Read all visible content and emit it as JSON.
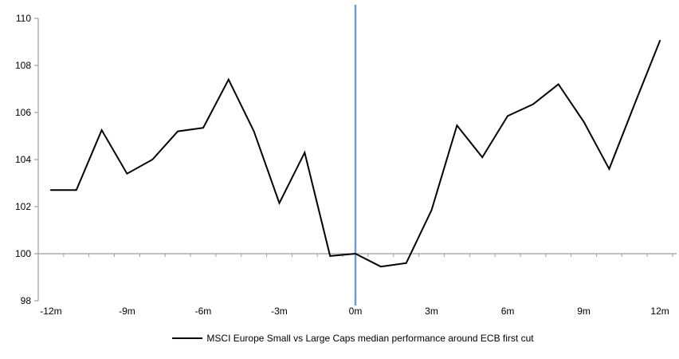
{
  "figure": {
    "background": "#ffffff"
  },
  "chart_data": {
    "type": "line",
    "title": "",
    "x": [
      -12,
      -11,
      -10,
      -9,
      -8,
      -7,
      -6,
      -5,
      -4,
      -3,
      -2,
      -1,
      0,
      1,
      2,
      3,
      4,
      5,
      6,
      7,
      8,
      9,
      10,
      11,
      12
    ],
    "series": [
      {
        "name": "MSCI Europe Small vs Large Caps median performance around ECB first cut",
        "color": "#000000",
        "values": [
          102.7,
          102.7,
          105.25,
          103.4,
          104.0,
          105.2,
          105.35,
          107.4,
          105.2,
          102.15,
          104.3,
          99.9,
          100.0,
          99.45,
          99.6,
          101.85,
          105.45,
          104.1,
          105.85,
          106.35,
          107.2,
          105.6,
          103.6,
          106.35,
          109.05
        ]
      }
    ],
    "x_tick_values": [
      -12,
      -9,
      -6,
      -3,
      0,
      3,
      6,
      9,
      12
    ],
    "x_tick_labels": [
      "-12m",
      "-9m",
      "-6m",
      "-3m",
      "0m",
      "3m",
      "6m",
      "9m",
      "12m"
    ],
    "y_ticks": [
      98,
      100,
      102,
      104,
      106,
      108,
      110
    ],
    "ylim": [
      98,
      110
    ],
    "grid": false,
    "axis_color": "#9e9e9e",
    "tick_label_color": "#000000",
    "reference_lines": {
      "vertical_x": 0,
      "vertical_color": "#6FA0CB",
      "horizontal_y": 100,
      "horizontal_color": "#9e9e9e"
    },
    "legend_position": "bottom"
  }
}
